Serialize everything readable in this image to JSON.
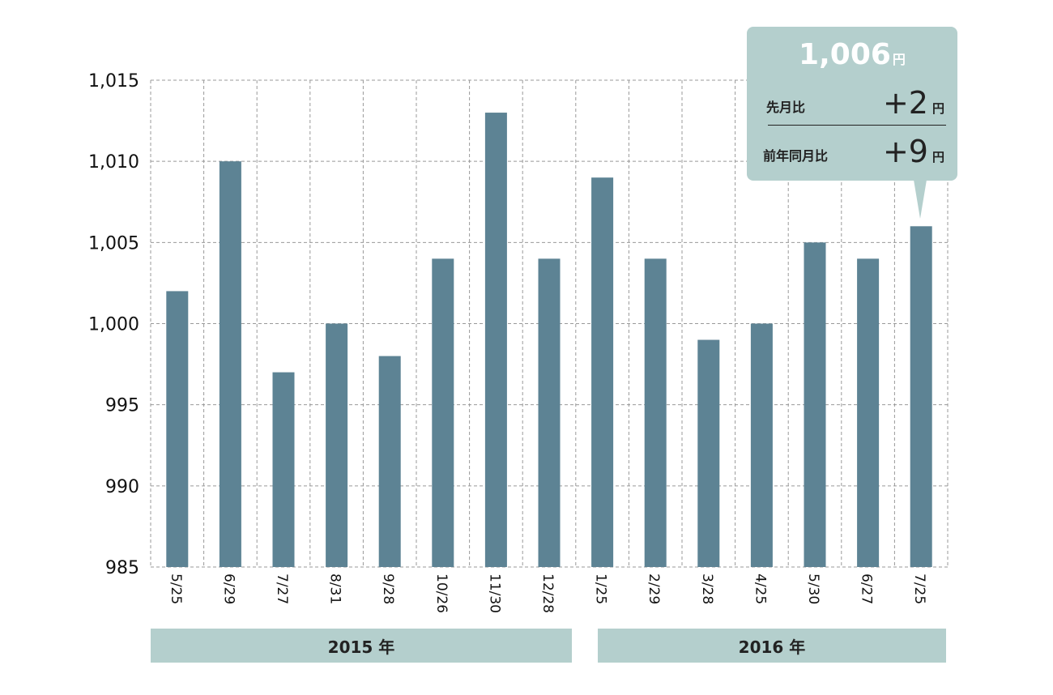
{
  "chart_data": {
    "type": "bar",
    "categories": [
      "5/25",
      "6/29",
      "7/27",
      "8/31",
      "9/28",
      "10/26",
      "11/30",
      "12/28",
      "1/25",
      "2/29",
      "3/28",
      "4/25",
      "5/30",
      "6/27",
      "7/25"
    ],
    "values": [
      1002,
      1010,
      997,
      1000,
      998,
      1004,
      1013,
      1004,
      1009,
      1004,
      999,
      1000,
      1005,
      1004,
      1006
    ],
    "ylim": [
      985,
      1015
    ],
    "yticks": [
      "985",
      "990",
      "995",
      "1,000",
      "1,005",
      "1,010",
      "1,015"
    ],
    "grid": true,
    "bar_color": "#5d8394"
  },
  "year_groups": [
    {
      "label": "2015 年"
    },
    {
      "label": "2016 年"
    }
  ],
  "callout": {
    "value": "1,006",
    "value_unit": "円",
    "rows": [
      {
        "label": "先月比",
        "value": "+2",
        "unit": "円"
      },
      {
        "label": "前年同月比",
        "value": "+9",
        "unit": "円"
      }
    ],
    "color": "#b4cfcd"
  }
}
